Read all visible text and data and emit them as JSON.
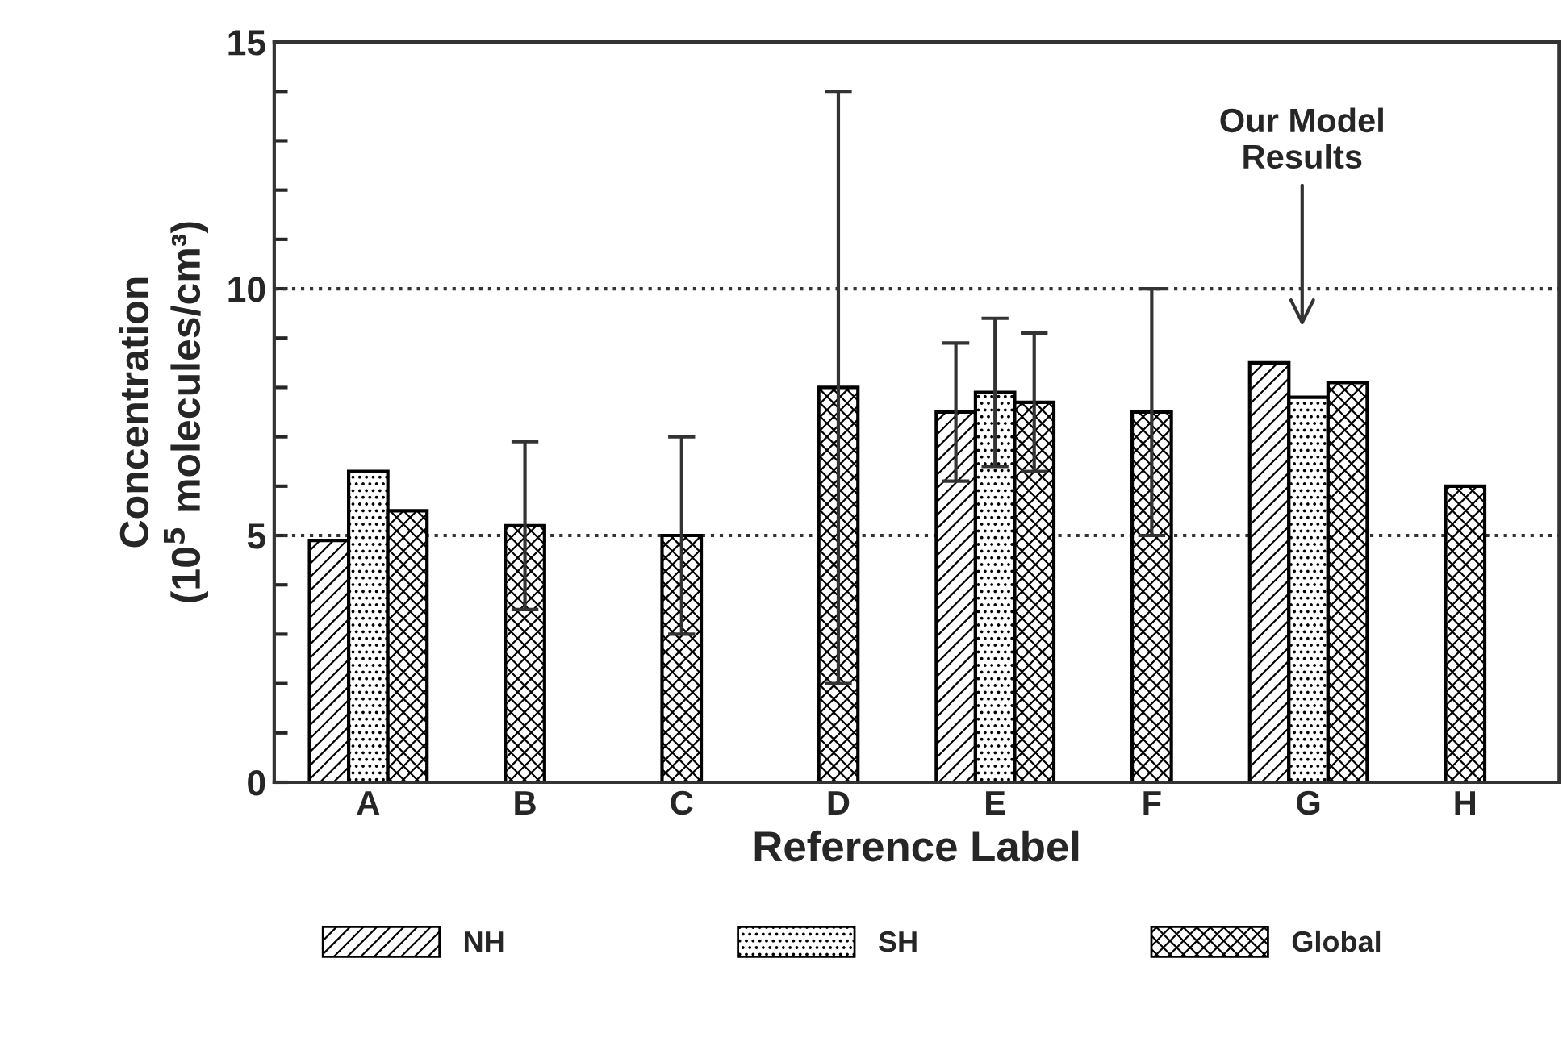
{
  "chart_data": {
    "type": "bar",
    "xlabel": "Reference Label",
    "ylabel": "Concentration\n(10$^{5}$ molecules/cm³)",
    "categories": [
      "A",
      "B",
      "C",
      "D",
      "E",
      "F",
      "G",
      "H"
    ],
    "series": [
      {
        "name": "NH",
        "color": "#000000",
        "values": [
          4.9,
          null,
          null,
          null,
          7.5,
          null,
          8.5,
          null
        ],
        "errors": [
          null,
          null,
          null,
          null,
          [
            6.1,
            8.9
          ],
          null,
          null,
          null
        ]
      },
      {
        "name": "SH",
        "color": "#000000",
        "values": [
          6.3,
          null,
          null,
          null,
          7.9,
          null,
          7.8,
          null
        ],
        "errors": [
          null,
          null,
          null,
          null,
          [
            6.4,
            9.4
          ],
          null,
          null,
          null
        ]
      },
      {
        "name": "Global",
        "color": "#000000",
        "values": [
          5.5,
          5.2,
          5.0,
          8.0,
          7.7,
          7.5,
          8.1,
          6.0
        ],
        "errors": [
          null,
          [
            3.5,
            6.9
          ],
          [
            3.0,
            7.0
          ],
          [
            2.0,
            14.0
          ],
          [
            6.3,
            9.1
          ],
          [
            5.0,
            10.0
          ],
          null,
          null
        ]
      }
    ],
    "ylim": [
      0,
      15
    ],
    "yticks": [
      0,
      {
        "value": 1,
        "label": null
      },
      {
        "value": 2,
        "label": null
      },
      {
        "value": 3,
        "label": null
      },
      {
        "value": 4,
        "label": null
      },
      5,
      {
        "value": 6,
        "label": null
      },
      {
        "value": 7,
        "label": null
      },
      {
        "value": 8,
        "label": null
      },
      {
        "value": 9,
        "label": null
      },
      10,
      {
        "value": 11,
        "label": null
      },
      {
        "value": 12,
        "label": null
      },
      {
        "value": 13,
        "label": null
      },
      {
        "value": 14,
        "label": null
      },
      15
    ],
    "ref_lines": [
      {
        "axis": "y",
        "value": 5,
        "line_style": "dotted"
      },
      {
        "axis": "y",
        "value": 10,
        "line_style": "dotted"
      }
    ],
    "annotations": [
      "Our Model\nResults"
    ],
    "grid": false,
    "legend": "bottom"
  }
}
